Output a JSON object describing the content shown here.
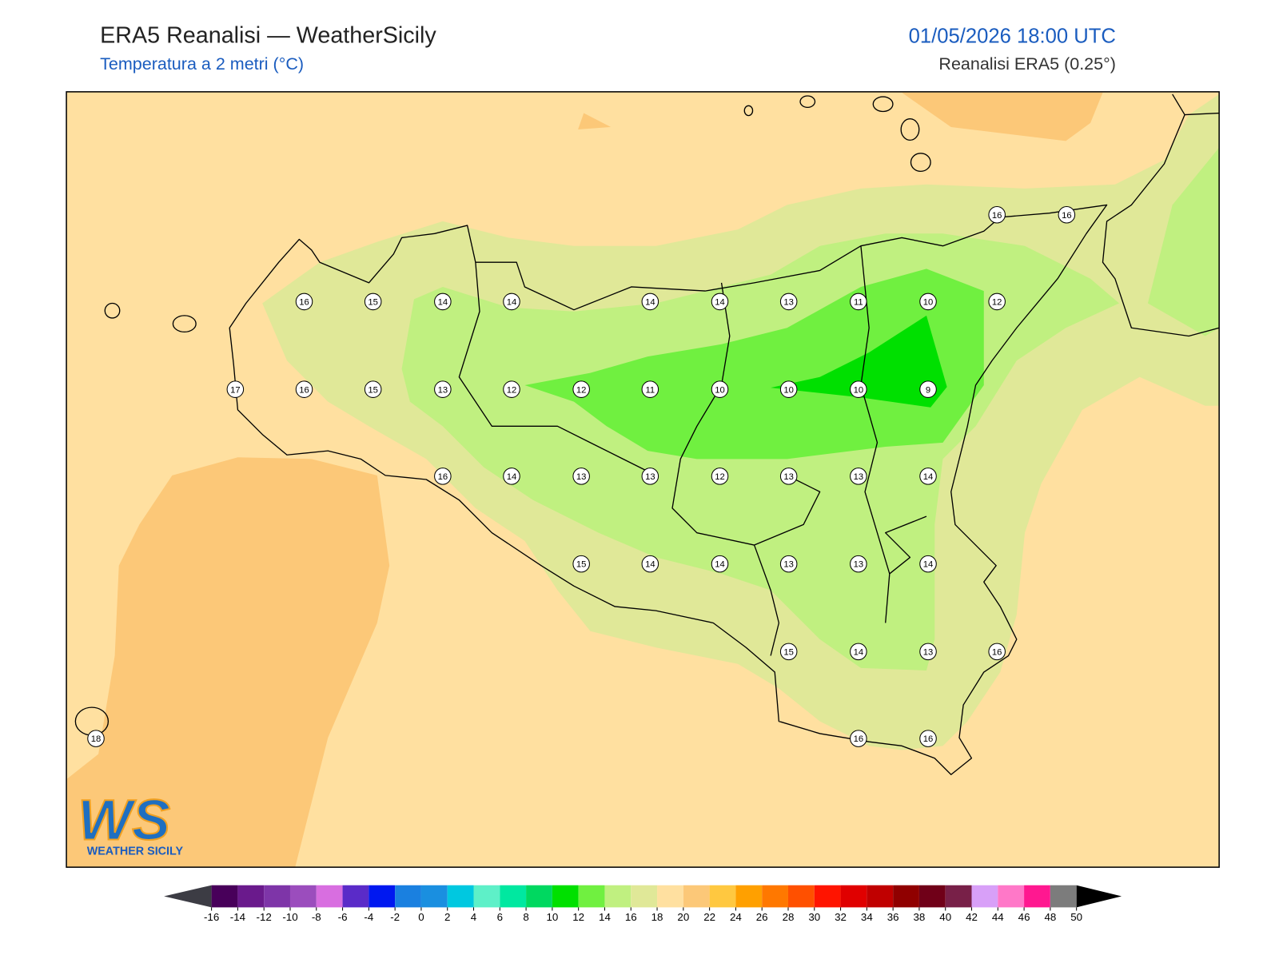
{
  "header": {
    "title": "ERA5 Reanalisi — WeatherSicily",
    "subtitle": "Temperatura a 2 metri (°C)",
    "datetime": "01/05/2026 18:00 UTC",
    "source": "Reanalisi ERA5 (0.25°)"
  },
  "map": {
    "station_values": [
      16,
      16,
      16,
      15,
      14,
      14,
      14,
      14,
      13,
      11,
      10,
      12,
      17,
      16,
      15,
      13,
      12,
      12,
      11,
      10,
      10,
      10,
      9,
      16,
      14,
      13,
      13,
      12,
      13,
      13,
      14,
      15,
      14,
      14,
      13,
      13,
      14,
      15,
      14,
      13,
      16,
      18,
      16,
      16
    ]
  },
  "colorbar": {
    "ticks": [
      -16,
      -14,
      -12,
      -10,
      -8,
      -6,
      -4,
      -2,
      0,
      2,
      4,
      6,
      8,
      10,
      12,
      14,
      16,
      18,
      20,
      22,
      24,
      26,
      28,
      30,
      32,
      34,
      36,
      38,
      40,
      42,
      44,
      46,
      48,
      50
    ],
    "colors": [
      "#48005a",
      "#6a1a8c",
      "#7e35a8",
      "#9b4dbd",
      "#d86ee0",
      "#5a2bc8",
      "#0018f0",
      "#1a80e0",
      "#1a8fe0",
      "#00c8e0",
      "#5ef0c8",
      "#00e8a0",
      "#00d860",
      "#00e000",
      "#70f040",
      "#c0f080",
      "#e0e898",
      "#ffe0a0",
      "#fcc878",
      "#ffc840",
      "#ffa000",
      "#ff7800",
      "#ff5000",
      "#ff1400",
      "#e00000",
      "#c00000",
      "#900000",
      "#700018",
      "#782048",
      "#d8a0f8",
      "#ff78c8",
      "#ff1890",
      "#7c7c7c",
      "#404040"
    ],
    "under_color": "#3c3c44",
    "over_color": "#000000"
  },
  "logo": {
    "text": "WS",
    "caption": "WEATHER SICILY"
  }
}
